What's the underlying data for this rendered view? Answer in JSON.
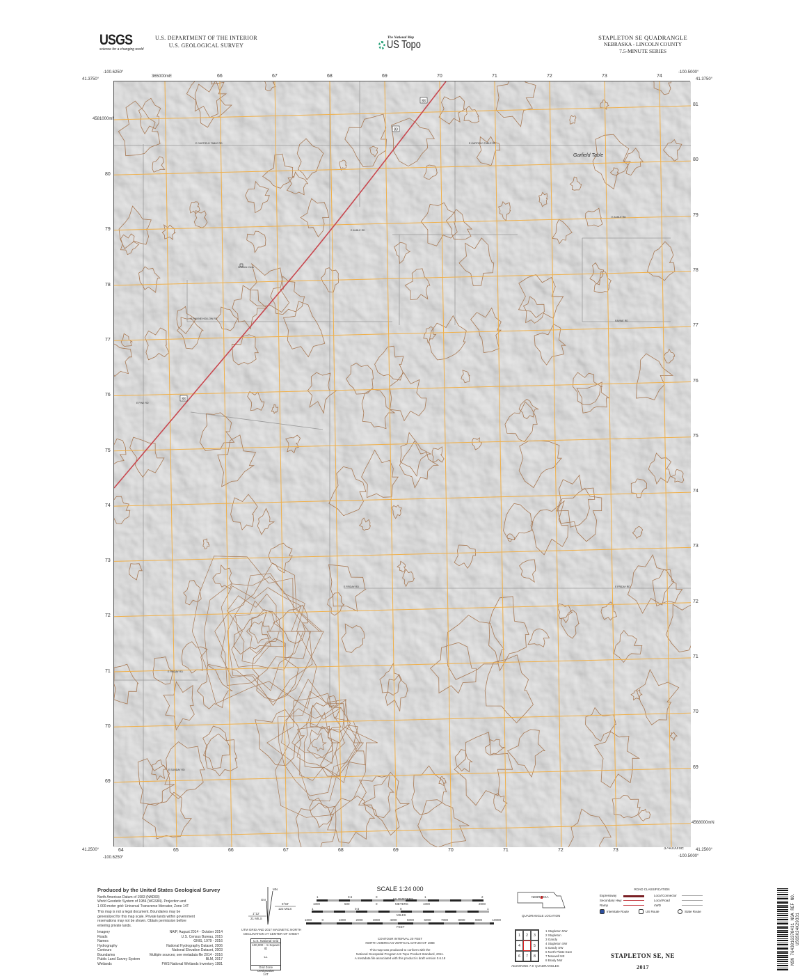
{
  "header": {
    "agency_logo": "USGS",
    "agency_tagline": "science for a changing world",
    "department": "U.S. DEPARTMENT OF THE INTERIOR",
    "survey": "U.S. GEOLOGICAL SURVEY",
    "product_small": "The National Map",
    "product": "US Topo",
    "quad_title": "STAPLETON SE QUADRANGLE",
    "state_county": "NEBRASKA - LINCOLN COUNTY",
    "series": "7.5-MINUTE SERIES"
  },
  "map": {
    "corners": {
      "top_left_lon": "-100.6250°",
      "top_left_lat": "41.3750°",
      "top_right_lon": "-100.5000°",
      "top_right_lat": "41.3750°",
      "bottom_left_lon": "-100.6250°",
      "bottom_left_lat": "41.2500°",
      "bottom_right_lon": "-100.5000°",
      "bottom_right_lat": "41.2500°"
    },
    "top_first_easting": "365000mE",
    "top_eastings": [
      "66",
      "67",
      "68",
      "69",
      "70",
      "71",
      "72",
      "73",
      "74"
    ],
    "bottom_eastings": [
      "64",
      "65",
      "66",
      "67",
      "68",
      "69",
      "70",
      "71",
      "72",
      "73"
    ],
    "bottom_last_easting": "374000mE",
    "left_first_northing": "4581000mN",
    "northings": [
      "80",
      "79",
      "78",
      "77",
      "76",
      "75",
      "74",
      "73",
      "72",
      "71",
      "70",
      "69"
    ],
    "right_northings": [
      "81",
      "80",
      "79",
      "78",
      "77",
      "76",
      "75",
      "74",
      "73",
      "72",
      "71",
      "70",
      "69"
    ],
    "right_last_northing": "4568000mN",
    "colors": {
      "grid": "#f0b04a",
      "contour": "#a87a55",
      "highway": "#c8484f",
      "road": "#9a9a9a",
      "background": "#e3e3e3"
    },
    "place_names": {
      "garfield": "Garfield Table",
      "cemetery": "Wurtele Cem"
    },
    "road_labels": [
      "E GARFIELD TABLE RD",
      "E GARFIELD TABLE RD",
      "E AUBLE RD",
      "E AUBLE RD",
      "E RAVINE HOLLOW RD",
      "RAVINE RD",
      "E FRIDAY RD",
      "E FRIDAY RD",
      "E FRIDAY RD",
      "E SUNDAY RD",
      "E PINE RD"
    ],
    "route_shields": [
      "83",
      "83",
      "83"
    ]
  },
  "footer": {
    "producer": "Produced by the United States Geological Survey",
    "datum_lines": [
      "North American Datum of 1983 (NAD83)",
      "World Geodetic System of 1984 (WGS84). Projection and",
      "1 000-meter grid: Universal Transverse Mercator, Zone 14T"
    ],
    "legal_lines": [
      "This map is not a legal document. Boundaries may be",
      "generalized for this map scale. Private lands within government",
      "reservations may not be shown. Obtain permission before",
      "entering private lands."
    ],
    "credits": [
      {
        "item": "Imagery",
        "source": "NAIP, August 2014 - October 2014"
      },
      {
        "item": "Roads",
        "source": "U.S. Census Bureau, 2015"
      },
      {
        "item": "Names",
        "source": "GNIS, 1979 - 2016"
      },
      {
        "item": "Hydrography",
        "source": "National Hydrography Dataset, 2006"
      },
      {
        "item": "Contours",
        "source": "National Elevation Dataset, 2003"
      },
      {
        "item": "Boundaries",
        "source": "Multiple sources; see metadata file 2014 - 2016"
      },
      {
        "item": "Public Land Survey System",
        "source": "BLM, 2017"
      },
      {
        "item": "Wetlands",
        "source": "FWS National Wetlands Inventory 1981"
      }
    ],
    "declination": {
      "gn": "GN",
      "mn": "MN",
      "left_angle": "1°12'",
      "left_mils": "21 MILS",
      "right_angle": "6°50'",
      "right_mils": "122 MILS",
      "caption1": "UTM GRID AND 2017 MAGNETIC NORTH",
      "caption2": "DECLINATION AT CENTER OF SHEET"
    },
    "usng": {
      "title": "U.S. National Grid",
      "sub": "100,000 - m Square ID",
      "square": "LL",
      "gzd_label": "Grid Zone Designation",
      "gzd": "14T"
    },
    "scale": {
      "title": "SCALE 1:24 000",
      "km_ticks": [
        "1",
        "0.5",
        "0",
        "1",
        "2"
      ],
      "km_unit": "KILOMETERS",
      "m_ticks": [
        "1000",
        "500",
        "0",
        "1000",
        "2000"
      ],
      "m_unit": "METERS",
      "mi_ticks": [
        "1",
        "0.5",
        "0",
        "1"
      ],
      "mi_unit": "MILES",
      "ft_ticks": [
        "1000",
        "0",
        "1000",
        "2000",
        "3000",
        "4000",
        "5000",
        "6000",
        "7000",
        "8000",
        "9000",
        "10000"
      ],
      "ft_unit": "FEET"
    },
    "contour_interval": "CONTOUR INTERVAL 20 FEET",
    "vertical_datum": "NORTH AMERICAN VERTICAL DATUM OF 1988",
    "standard_lines": [
      "This map was produced to conform with the",
      "National Geospatial Program US Topo Product Standard, 2011.",
      "A metadata file associated with this product is draft version 0.6.18"
    ],
    "location": {
      "state": "NEBRASKA",
      "caption": "QUADRANGLE LOCATION"
    },
    "adjoining": {
      "cells": [
        "1",
        "2",
        "3",
        "4",
        "",
        "5",
        "6",
        "7",
        "8"
      ],
      "names": [
        "1 Stapleton NW",
        "2 Stapleton",
        "3 Gandy",
        "4 Stapleton SW",
        "5 Gandy SW",
        "6 North Platte East",
        "7 Maxwell NE",
        "8 Brady NW"
      ],
      "caption": "ADJOINING 7.5' QUADRANGLES"
    },
    "road_class": {
      "title": "ROAD CLASSIFICATION",
      "left": [
        "Expressway",
        "Secondary Hwy",
        "Ramp"
      ],
      "right": [
        "Local Connector",
        "Local Road",
        "4WD"
      ],
      "routes": [
        "Interstate Route",
        "US Route",
        "State Route"
      ]
    },
    "sheet_title": "STAPLETON SE, NE",
    "year": "2017",
    "barcode_text": "NSN 7643016378431  NGA REF NO. USGSX24K29331"
  }
}
